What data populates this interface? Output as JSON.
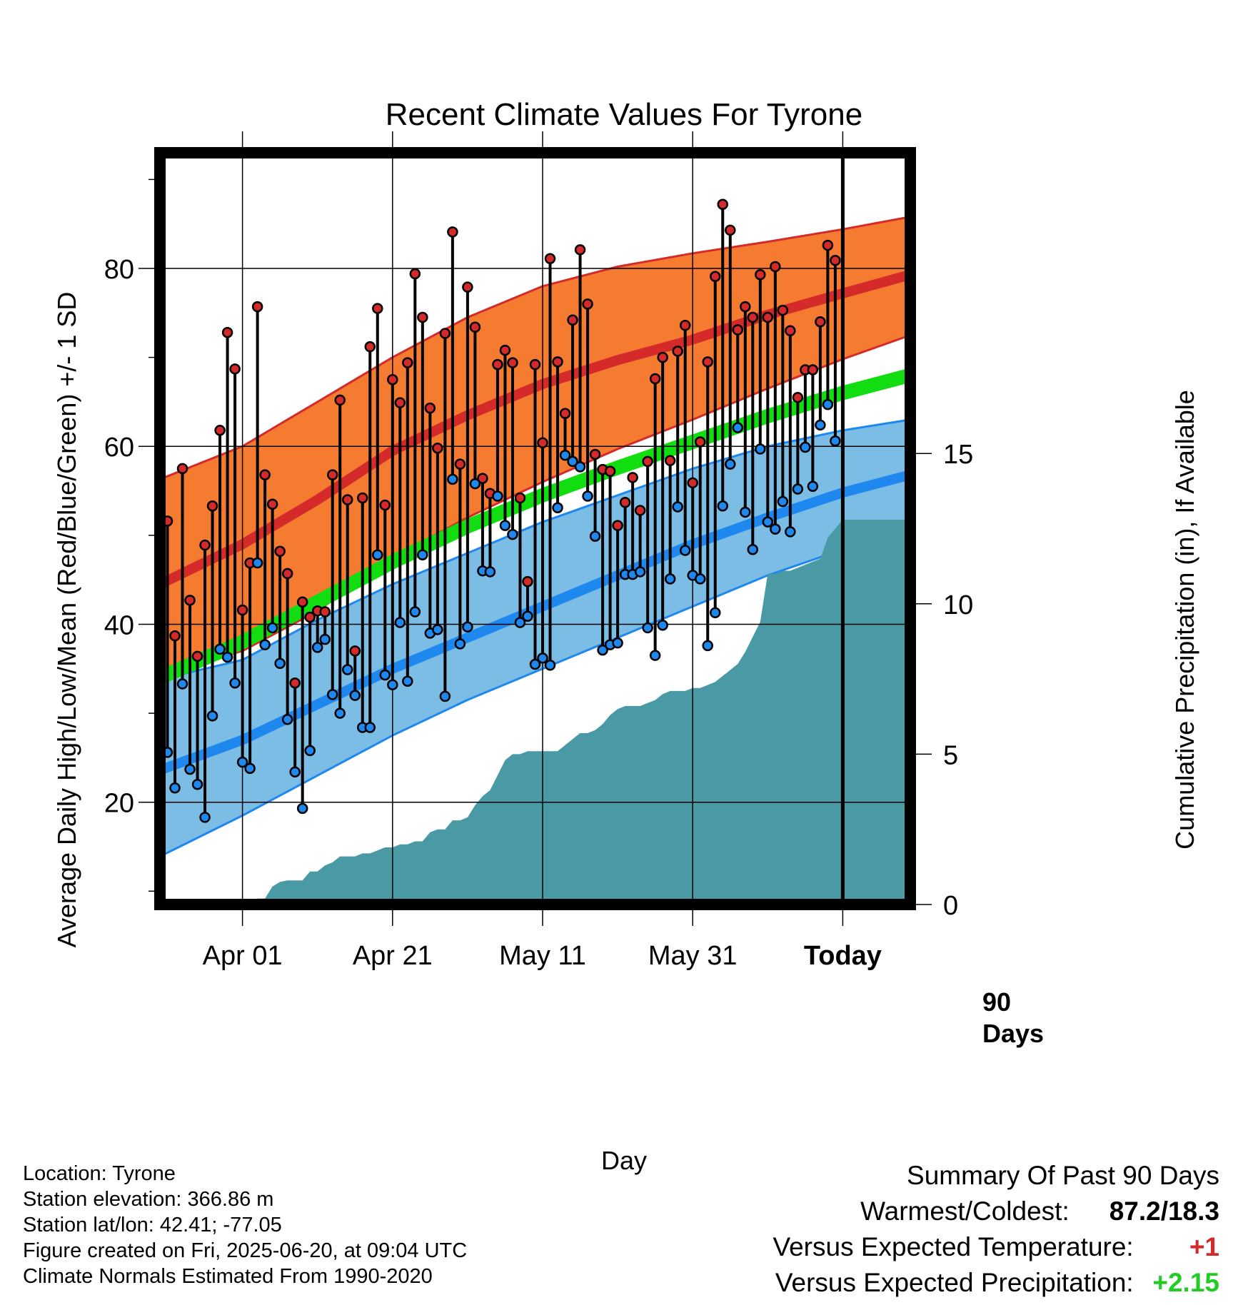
{
  "title": "Recent Climate Values For Tyrone",
  "ylabel_left": "Average Daily High/Low/Mean (Red/Blue/Green) +/- 1 SD",
  "ylabel_right": "Cumulative Precipitation (in), If Available",
  "xlabel": "Day",
  "x_tick_labels": [
    "Apr 01",
    "Apr 21",
    "May 11",
    "May 31",
    "Today"
  ],
  "left_tick_labels": [
    "20",
    "40",
    "60",
    "80"
  ],
  "right_tick_labels": [
    "0",
    "5",
    "10",
    "15"
  ],
  "today_label_line1": "90",
  "today_label_line2": "Days",
  "footer": {
    "location": "Location: Tyrone",
    "elevation": "Station elevation: 366.86 m",
    "latlon": "Station lat/lon: 42.41; -77.05",
    "created": "Figure created on Fri, 2025-06-20, at 09:04 UTC",
    "normals": "Climate Normals Estimated From 1990-2020"
  },
  "summary": {
    "heading": "Summary Of Past 90 Days",
    "warmest_coldest_label": "Warmest/Coldest:",
    "warmest_coldest_value": "87.2/18.3",
    "temp_label": "Versus Expected Temperature:",
    "temp_value": "+1",
    "precip_label": "Versus Expected Precipitation:",
    "precip_value": "+2.15"
  },
  "colors": {
    "high_band": "#f47b30",
    "high_mean": "#d42a2a",
    "low_band": "#7cbde6",
    "low_mean": "#1e88ee",
    "mean_line": "#11dd11",
    "precip_fill": "#4a9aa5",
    "high_point": "#d42a2a",
    "low_point": "#1e88ee",
    "temp_delta": "#d42a2a",
    "precip_delta": "#22cc22"
  },
  "chart_data": {
    "type": "line",
    "x_axis": "day offset relative to Today (0 = Today)",
    "xlim": [
      -91,
      9
    ],
    "ylim_left": [
      8.5,
      93
    ],
    "ylim_right": [
      0,
      25
    ],
    "x_ticks": [
      -80,
      -60,
      -40,
      -20,
      0
    ],
    "normals": {
      "x": [
        -91,
        -80,
        -70,
        -60,
        -50,
        -40,
        -30,
        -20,
        -10,
        0,
        9
      ],
      "high_mean": [
        44.5,
        49.0,
        54.0,
        59.5,
        63.5,
        67.0,
        69.7,
        72.0,
        74.8,
        77.2,
        79.3
      ],
      "high_upper": [
        56.3,
        60.0,
        65.0,
        70.0,
        74.5,
        78.0,
        80.2,
        81.7,
        83.0,
        84.4,
        85.8
      ],
      "high_lower": [
        34.5,
        37.0,
        41.5,
        47.5,
        52.0,
        56.0,
        59.7,
        63.0,
        66.5,
        69.8,
        72.5
      ],
      "low_mean": [
        23.6,
        27.0,
        31.0,
        35.0,
        38.5,
        42.0,
        45.5,
        49.0,
        52.0,
        54.8,
        56.8
      ],
      "low_upper": [
        33.8,
        36.0,
        40.5,
        44.5,
        48.0,
        51.5,
        54.5,
        57.5,
        60.0,
        61.8,
        63.0
      ],
      "low_lower": [
        13.9,
        18.5,
        23.0,
        27.5,
        31.5,
        35.0,
        38.5,
        42.0,
        45.5,
        48.4,
        50.7
      ],
      "mean": [
        34.0,
        38.0,
        42.5,
        47.0,
        51.0,
        54.5,
        57.6,
        60.5,
        63.4,
        66.0,
        68.0
      ]
    },
    "daily": {
      "x": [
        -90,
        -89,
        -88,
        -87,
        -86,
        -85,
        -84,
        -83,
        -82,
        -81,
        -80,
        -79,
        -78,
        -77,
        -76,
        -75,
        -74,
        -73,
        -72,
        -71,
        -70,
        -69,
        -68,
        -67,
        -66,
        -65,
        -64,
        -63,
        -62,
        -61,
        -60,
        -59,
        -58,
        -57,
        -56,
        -55,
        -54,
        -53,
        -52,
        -51,
        -50,
        -49,
        -48,
        -47,
        -46,
        -45,
        -44,
        -43,
        -42,
        -41,
        -40,
        -39,
        -38,
        -37,
        -36,
        -35,
        -34,
        -33,
        -32,
        -31,
        -30,
        -29,
        -28,
        -27,
        -26,
        -25,
        -24,
        -23,
        -22,
        -21,
        -20,
        -19,
        -18,
        -17,
        -16,
        -15,
        -14,
        -13,
        -12,
        -11,
        -10,
        -9,
        -8,
        -7,
        -6,
        -5,
        -4,
        -3,
        -2,
        -1
      ],
      "high": [
        51.6,
        38.7,
        57.5,
        42.7,
        36.4,
        48.9,
        53.3,
        61.8,
        72.8,
        68.7,
        41.6,
        46.9,
        75.7,
        56.8,
        53.5,
        48.2,
        45.7,
        33.4,
        42.5,
        40.8,
        41.5,
        41.4,
        56.8,
        65.2,
        54.0,
        37.0,
        54.2,
        71.2,
        75.5,
        53.4,
        67.5,
        64.9,
        69.4,
        79.4,
        74.5,
        64.3,
        59.8,
        72.7,
        84.1,
        58.0,
        77.9,
        73.4,
        56.4,
        54.7,
        69.2,
        70.8,
        69.4,
        54.2,
        44.8,
        69.2,
        60.4,
        81.1,
        69.5,
        63.7,
        74.2,
        82.1,
        76.0,
        59.1,
        57.4,
        57.2,
        51.1,
        53.7,
        56.5,
        52.8,
        58.3,
        67.6,
        70.0,
        58.4,
        70.7,
        73.6,
        55.9,
        60.5,
        69.5,
        79.1,
        87.2,
        84.3,
        73.1,
        75.7,
        74.5,
        79.3,
        74.5,
        80.2,
        75.3,
        73.0,
        65.5,
        68.6,
        68.6,
        74.0,
        82.6,
        80.9
      ],
      "low": [
        25.6,
        21.6,
        33.3,
        23.7,
        22.0,
        18.3,
        29.7,
        37.2,
        36.3,
        33.4,
        24.5,
        23.8,
        46.9,
        37.7,
        39.6,
        35.6,
        29.3,
        23.4,
        19.3,
        25.8,
        37.4,
        38.3,
        32.1,
        30.0,
        34.9,
        32.0,
        28.4,
        28.4,
        47.8,
        34.3,
        33.2,
        40.2,
        33.6,
        41.4,
        47.8,
        39.0,
        39.4,
        31.9,
        56.3,
        37.8,
        39.7,
        55.8,
        46.0,
        45.9,
        54.4,
        51.1,
        50.1,
        40.2,
        40.9,
        35.5,
        36.2,
        35.4,
        53.1,
        59.0,
        58.3,
        57.7,
        54.4,
        49.9,
        37.1,
        37.7,
        37.9,
        45.6,
        45.6,
        45.9,
        39.6,
        36.5,
        39.9,
        45.1,
        53.2,
        48.3,
        45.5,
        45.1,
        37.6,
        41.3,
        53.3,
        58.0,
        62.1,
        52.6,
        48.4,
        59.7,
        51.5,
        50.7,
        53.8,
        50.4,
        55.2,
        59.9,
        55.5,
        62.4,
        64.7,
        60.6
      ]
    },
    "precip": {
      "x": [
        -80,
        -79,
        -78,
        -77,
        -76,
        -75,
        -74,
        -73,
        -72,
        -71,
        -70,
        -69,
        -68,
        -67,
        -66,
        -65,
        -64,
        -63,
        -62,
        -61,
        -60,
        -59,
        -58,
        -57,
        -56,
        -55,
        -54,
        -53,
        -52,
        -51,
        -50,
        -49,
        -48,
        -47,
        -46,
        -45,
        -44,
        -43,
        -42,
        -41,
        -40,
        -39,
        -38,
        -37,
        -36,
        -35,
        -34,
        -33,
        -32,
        -31,
        -30,
        -29,
        -28,
        -27,
        -26,
        -25,
        -24,
        -23,
        -22,
        -21,
        -20,
        -19,
        -18,
        -17,
        -16,
        -15,
        -14,
        -13,
        -12,
        -11,
        -10,
        -9,
        -8,
        -7,
        -6,
        -5,
        -4,
        -3,
        -2,
        -1,
        0,
        9
      ],
      "values": [
        0.0,
        0.1,
        0.2,
        0.2,
        0.6,
        0.75,
        0.8,
        0.8,
        0.8,
        1.1,
        1.1,
        1.3,
        1.4,
        1.6,
        1.6,
        1.6,
        1.7,
        1.7,
        1.8,
        1.9,
        1.9,
        2.0,
        2.0,
        2.1,
        2.1,
        2.4,
        2.5,
        2.5,
        2.8,
        2.8,
        2.9,
        3.3,
        3.6,
        3.8,
        4.3,
        4.8,
        5.0,
        5.0,
        5.1,
        5.1,
        5.1,
        5.1,
        5.1,
        5.3,
        5.5,
        5.7,
        5.7,
        5.8,
        6.0,
        6.3,
        6.5,
        6.6,
        6.6,
        6.6,
        6.7,
        6.8,
        7.0,
        7.1,
        7.1,
        7.1,
        7.2,
        7.2,
        7.3,
        7.4,
        7.6,
        7.8,
        8.0,
        8.4,
        8.9,
        9.4,
        11.0,
        11.0,
        11.1,
        11.1,
        11.2,
        11.3,
        11.4,
        11.5,
        12.2,
        12.5,
        12.8,
        12.8
      ]
    }
  }
}
